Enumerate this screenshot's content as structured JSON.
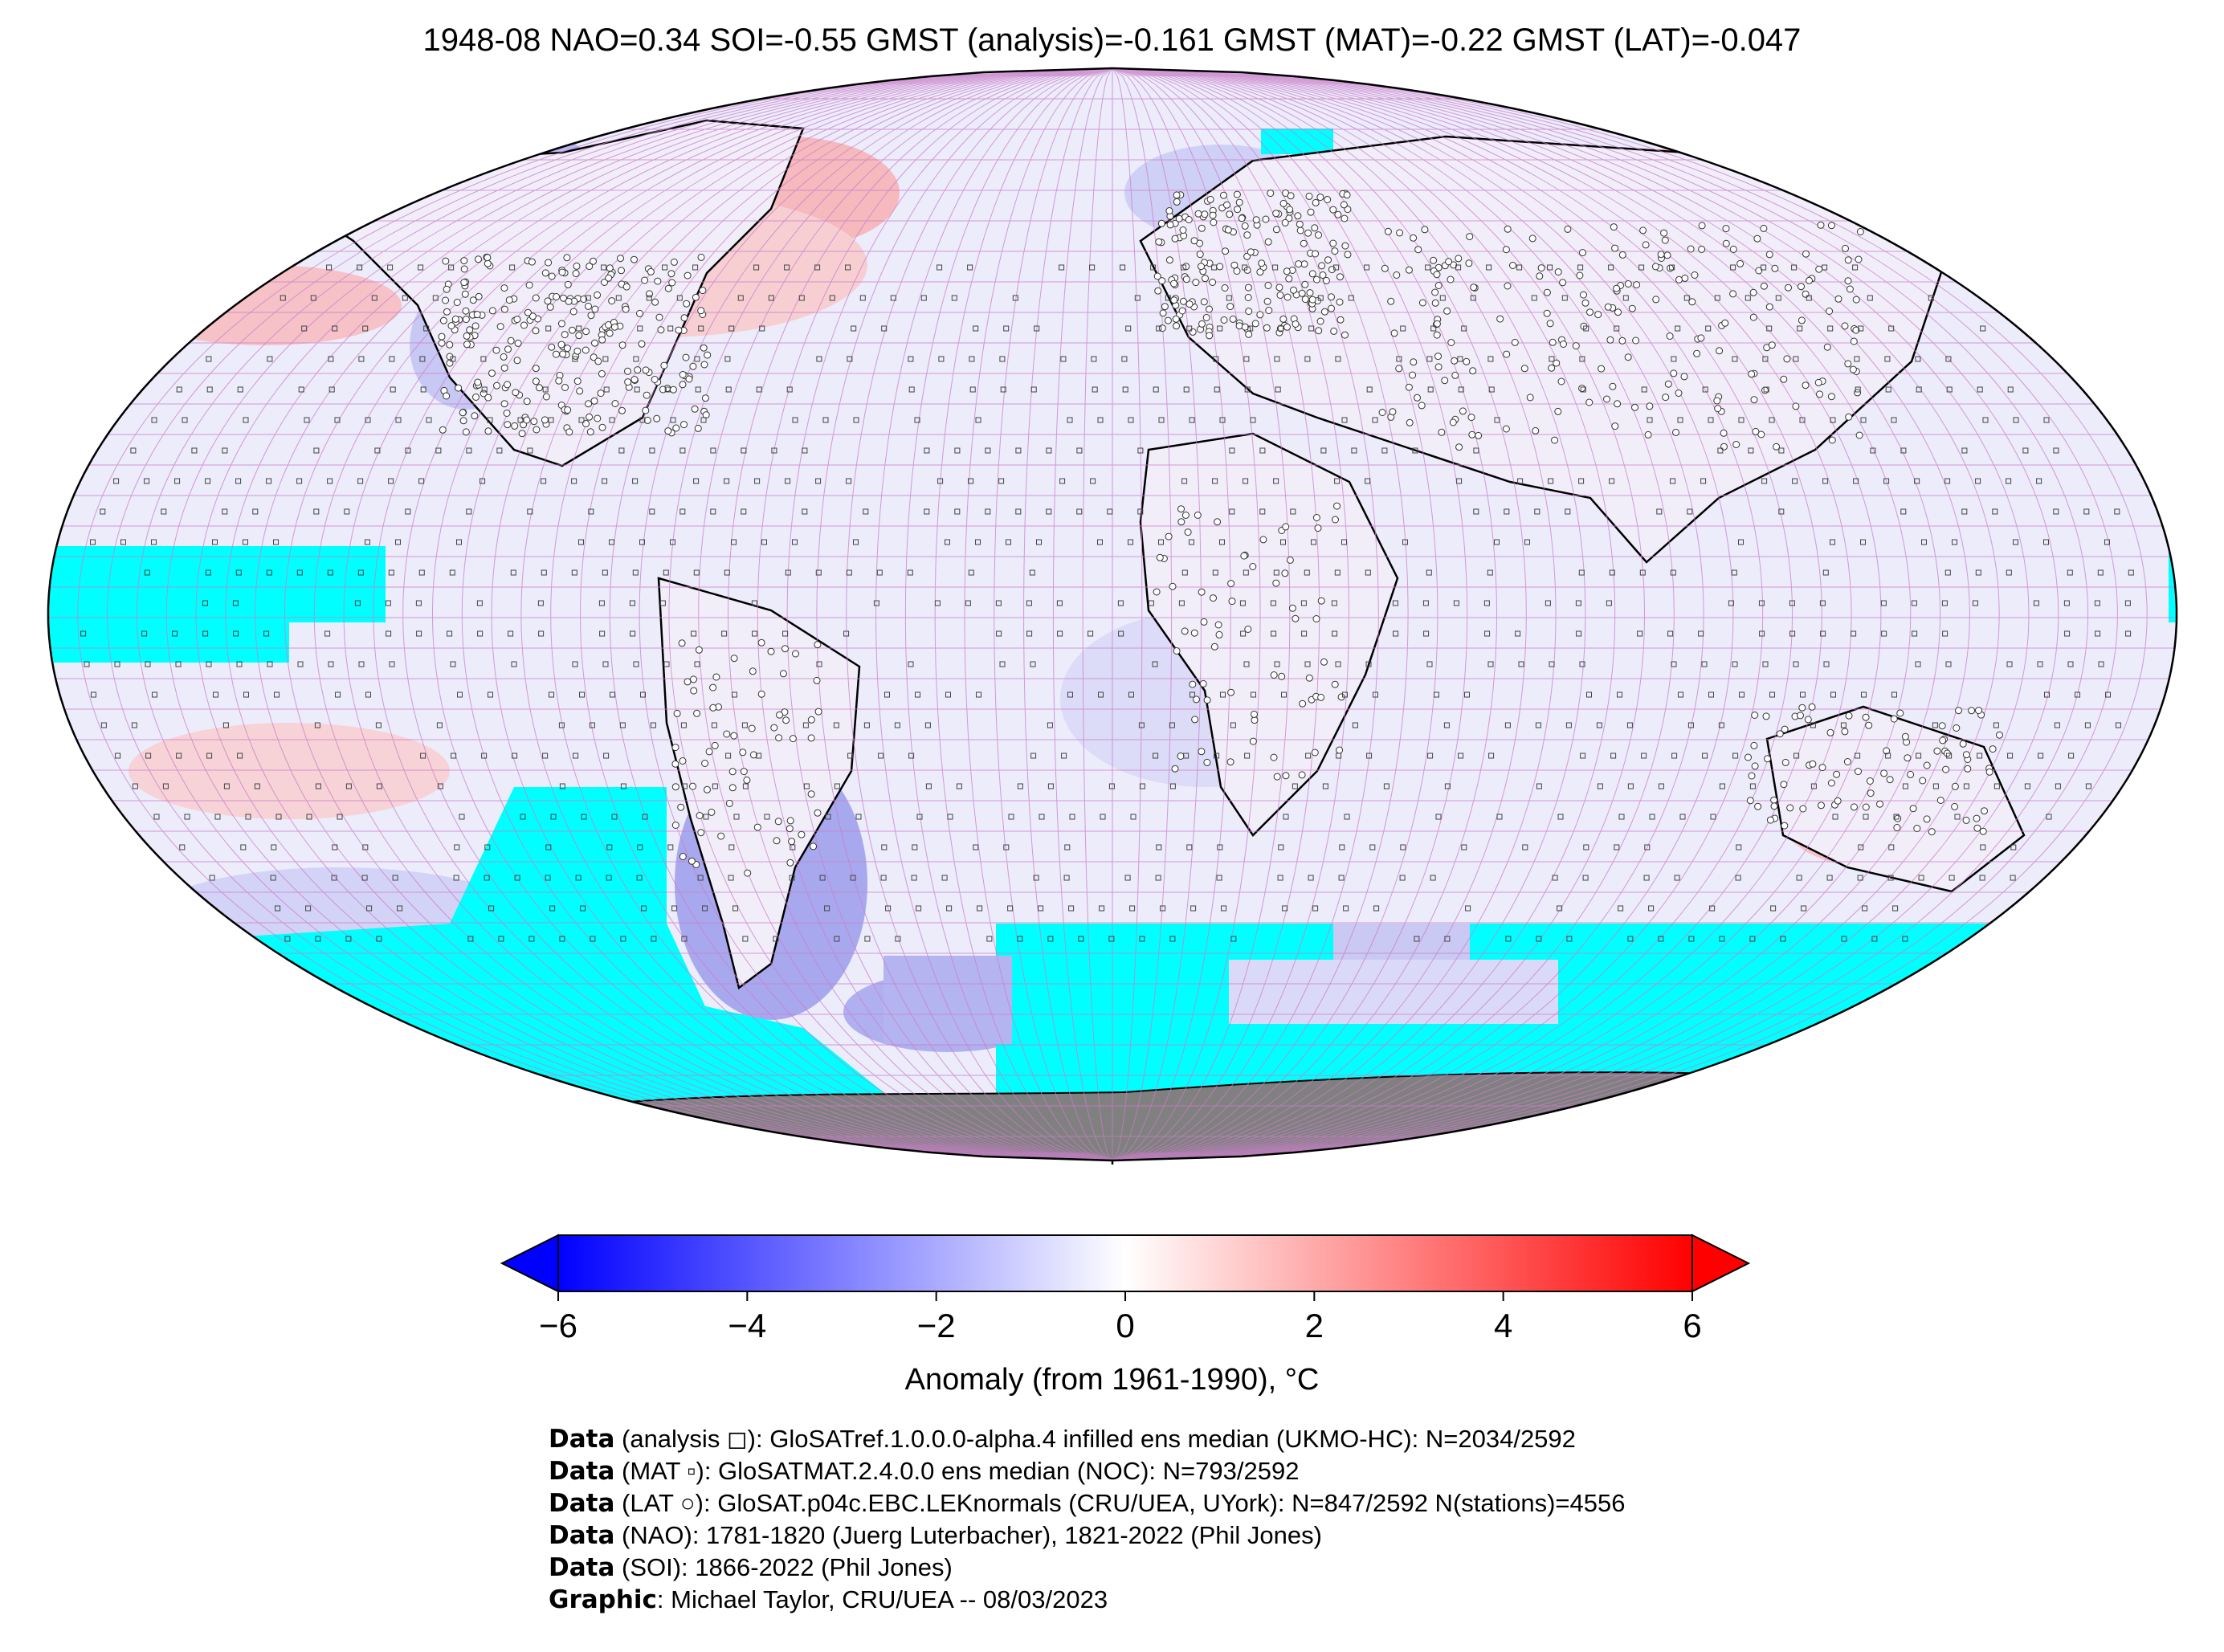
{
  "title": "1948-08 NAO=0.34 SOI=-0.55 GMST (analysis)=-0.161 GMST (MAT)=-0.22 GMST (LAT)=-0.047",
  "colorbar": {
    "ticks": [
      "−6",
      "−4",
      "−2",
      "0",
      "2",
      "4",
      "6"
    ],
    "tick_values": [
      -6,
      -4,
      -2,
      0,
      2,
      4,
      6
    ],
    "range": [
      -6,
      6
    ],
    "label": "Anomaly (from 1961-1990), °C",
    "colors": {
      "min": "#0000ff",
      "mid": "#ffffff",
      "max": "#ff0000"
    }
  },
  "map": {
    "projection": "Robinson",
    "missing_ocean_color": "#00ffff",
    "land_ice_color": "#808080",
    "grid_color": "#c080c0"
  },
  "credits": [
    {
      "bold": "Data",
      "text": " (analysis ◻): GloSATref.1.0.0.0-alpha.4 infilled ens median (UKMO-HC): N=2034/2592"
    },
    {
      "bold": "Data",
      "text": " (MAT ▫): GloSATMAT.2.4.0.0 ens median (NOC): N=793/2592"
    },
    {
      "bold": "Data",
      "text": " (LAT ○): GloSAT.p04c.EBC.LEKnormals (CRU/UEA, UYork): N=847/2592 N(stations)=4556"
    },
    {
      "bold": "Data",
      "text": " (NAO): 1781-1820 (Juerg Luterbacher), 1821-2022 (Phil Jones)"
    },
    {
      "bold": "Data",
      "text": " (SOI): 1866-2022 (Phil Jones)"
    },
    {
      "bold": "Graphic",
      "text": ": Michael Taylor, CRU/UEA -- 08/03/2023"
    }
  ]
}
